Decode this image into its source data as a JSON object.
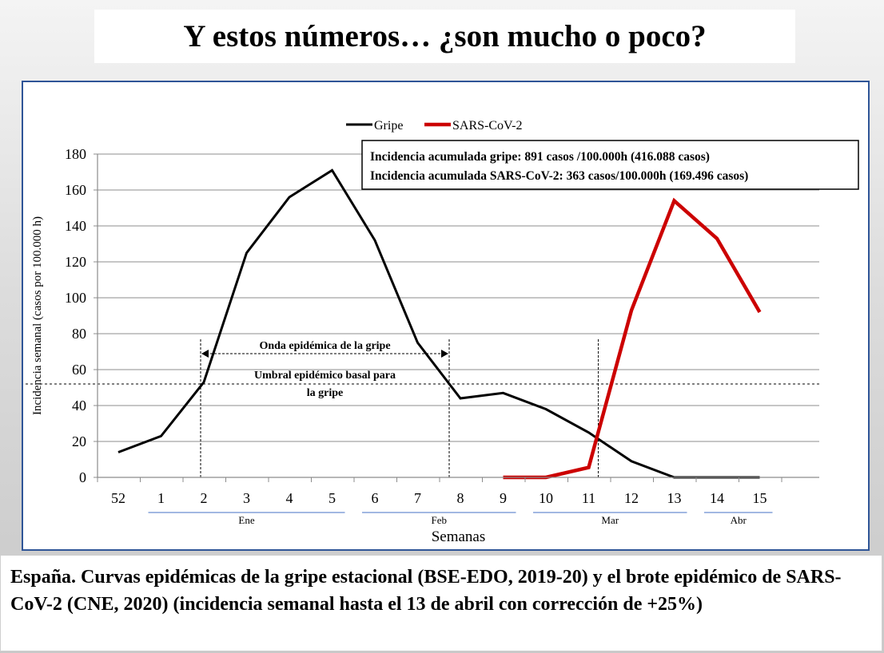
{
  "slide_title": "Y estos números… ¿son mucho o poco?",
  "caption": "España. Curvas epidémicas de la gripe estacional (BSE-EDO, 2019-20) y el brote epidémico de SARS-CoV-2  (CNE, 2020) (incidencia semanal hasta el 13 de abril con corrección de +25%)",
  "colors": {
    "gripe": "#000000",
    "sars": "#cc0000",
    "panel_border": "#2f5597",
    "month_line": "#4472c4"
  },
  "chart_data": {
    "type": "line",
    "x_label": "Semanas",
    "y_label": "Incidencia semanal (casos por 100.000 h)",
    "ylim": [
      0,
      180
    ],
    "y_ticks": [
      0,
      20,
      40,
      60,
      80,
      100,
      120,
      140,
      160,
      180
    ],
    "categories": [
      "52",
      "1",
      "2",
      "3",
      "4",
      "5",
      "6",
      "7",
      "8",
      "9",
      "10",
      "11",
      "12",
      "13",
      "14",
      "15"
    ],
    "grid": "horizontal",
    "legend_position": "top",
    "series": [
      {
        "name": "Gripe",
        "color": "#000000",
        "values": [
          14,
          23,
          53,
          125,
          156,
          171,
          132,
          75,
          44,
          47,
          38,
          25,
          9,
          0,
          0,
          0
        ]
      },
      {
        "name": "SARS-CoV-2",
        "color": "#cc0000",
        "values": [
          null,
          null,
          null,
          null,
          null,
          null,
          null,
          null,
          null,
          0,
          0,
          5.5,
          93,
          154,
          133,
          92
        ]
      }
    ],
    "months": [
      {
        "label": "Ene",
        "from": "1",
        "to": "5"
      },
      {
        "label": "Feb",
        "from": "6",
        "to": "9"
      },
      {
        "label": "Mar",
        "from": "10",
        "to": "13"
      },
      {
        "label": "Abr",
        "from": "14",
        "to": "15"
      }
    ],
    "info_box": [
      "Incidencia acumulada gripe: 891 casos /100.000h (416.088 casos)",
      "Incidencia acumulada SARS-CoV-2: 363 casos/100.000h (169.496 casos)"
    ],
    "annotations": {
      "epidemic_wave": {
        "label": "Onda epidémica de la gripe",
        "from_x": "2",
        "to_x": "8"
      },
      "threshold": {
        "label_line1": "Umbral epidémico basal para",
        "label_line2": "la gripe",
        "value": 52
      },
      "sars_marker_x": "11"
    }
  }
}
